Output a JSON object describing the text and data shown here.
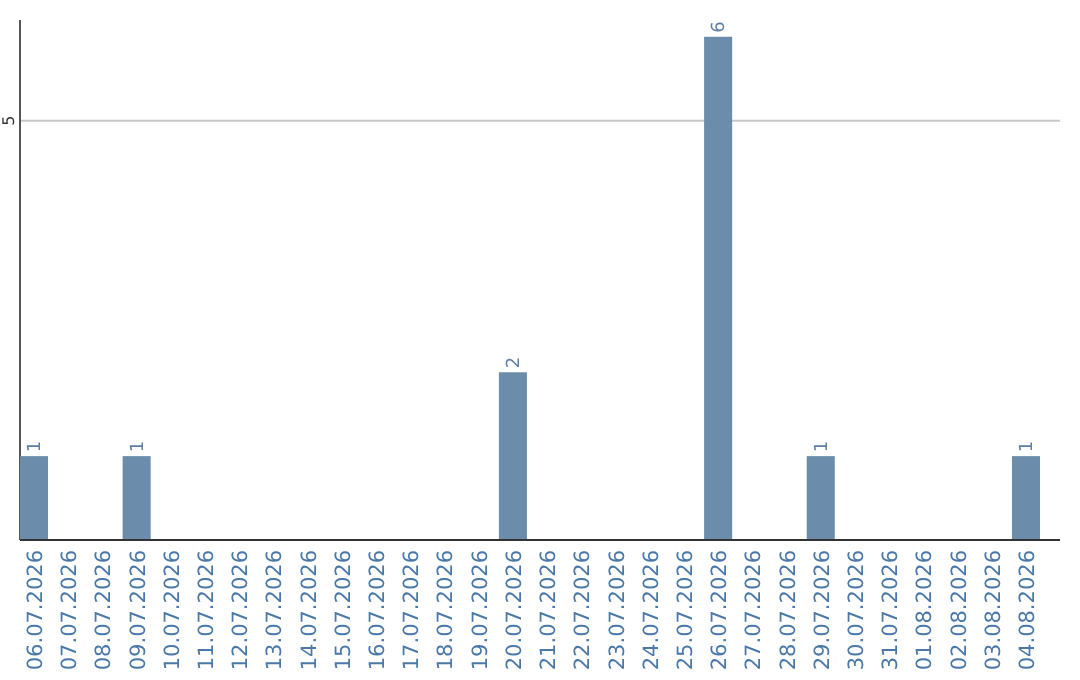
{
  "chart_data": {
    "type": "bar",
    "categories": [
      "06.07.2026",
      "07.07.2026",
      "08.07.2026",
      "09.07.2026",
      "10.07.2026",
      "11.07.2026",
      "12.07.2026",
      "13.07.2026",
      "14.07.2026",
      "15.07.2026",
      "16.07.2026",
      "17.07.2026",
      "18.07.2026",
      "19.07.2026",
      "20.07.2026",
      "21.07.2026",
      "22.07.2026",
      "23.07.2026",
      "24.07.2026",
      "25.07.2026",
      "26.07.2026",
      "27.07.2026",
      "28.07.2026",
      "29.07.2026",
      "30.07.2026",
      "31.07.2026",
      "01.08.2026",
      "02.08.2026",
      "03.08.2026",
      "04.08.2026"
    ],
    "values": [
      1,
      0,
      0,
      1,
      0,
      0,
      0,
      0,
      0,
      0,
      0,
      0,
      0,
      0,
      2,
      0,
      0,
      0,
      0,
      0,
      6,
      0,
      0,
      1,
      0,
      0,
      0,
      0,
      0,
      1
    ],
    "value_labels": [
      "1",
      null,
      null,
      "1",
      null,
      null,
      null,
      null,
      null,
      null,
      null,
      null,
      null,
      null,
      "2",
      null,
      null,
      null,
      null,
      null,
      "6",
      null,
      null,
      "1",
      null,
      null,
      null,
      null,
      null,
      "1"
    ],
    "color": "#6b8cab",
    "ylim": [
      0,
      6.2
    ],
    "yticks": [
      5
    ],
    "grid": "y"
  }
}
